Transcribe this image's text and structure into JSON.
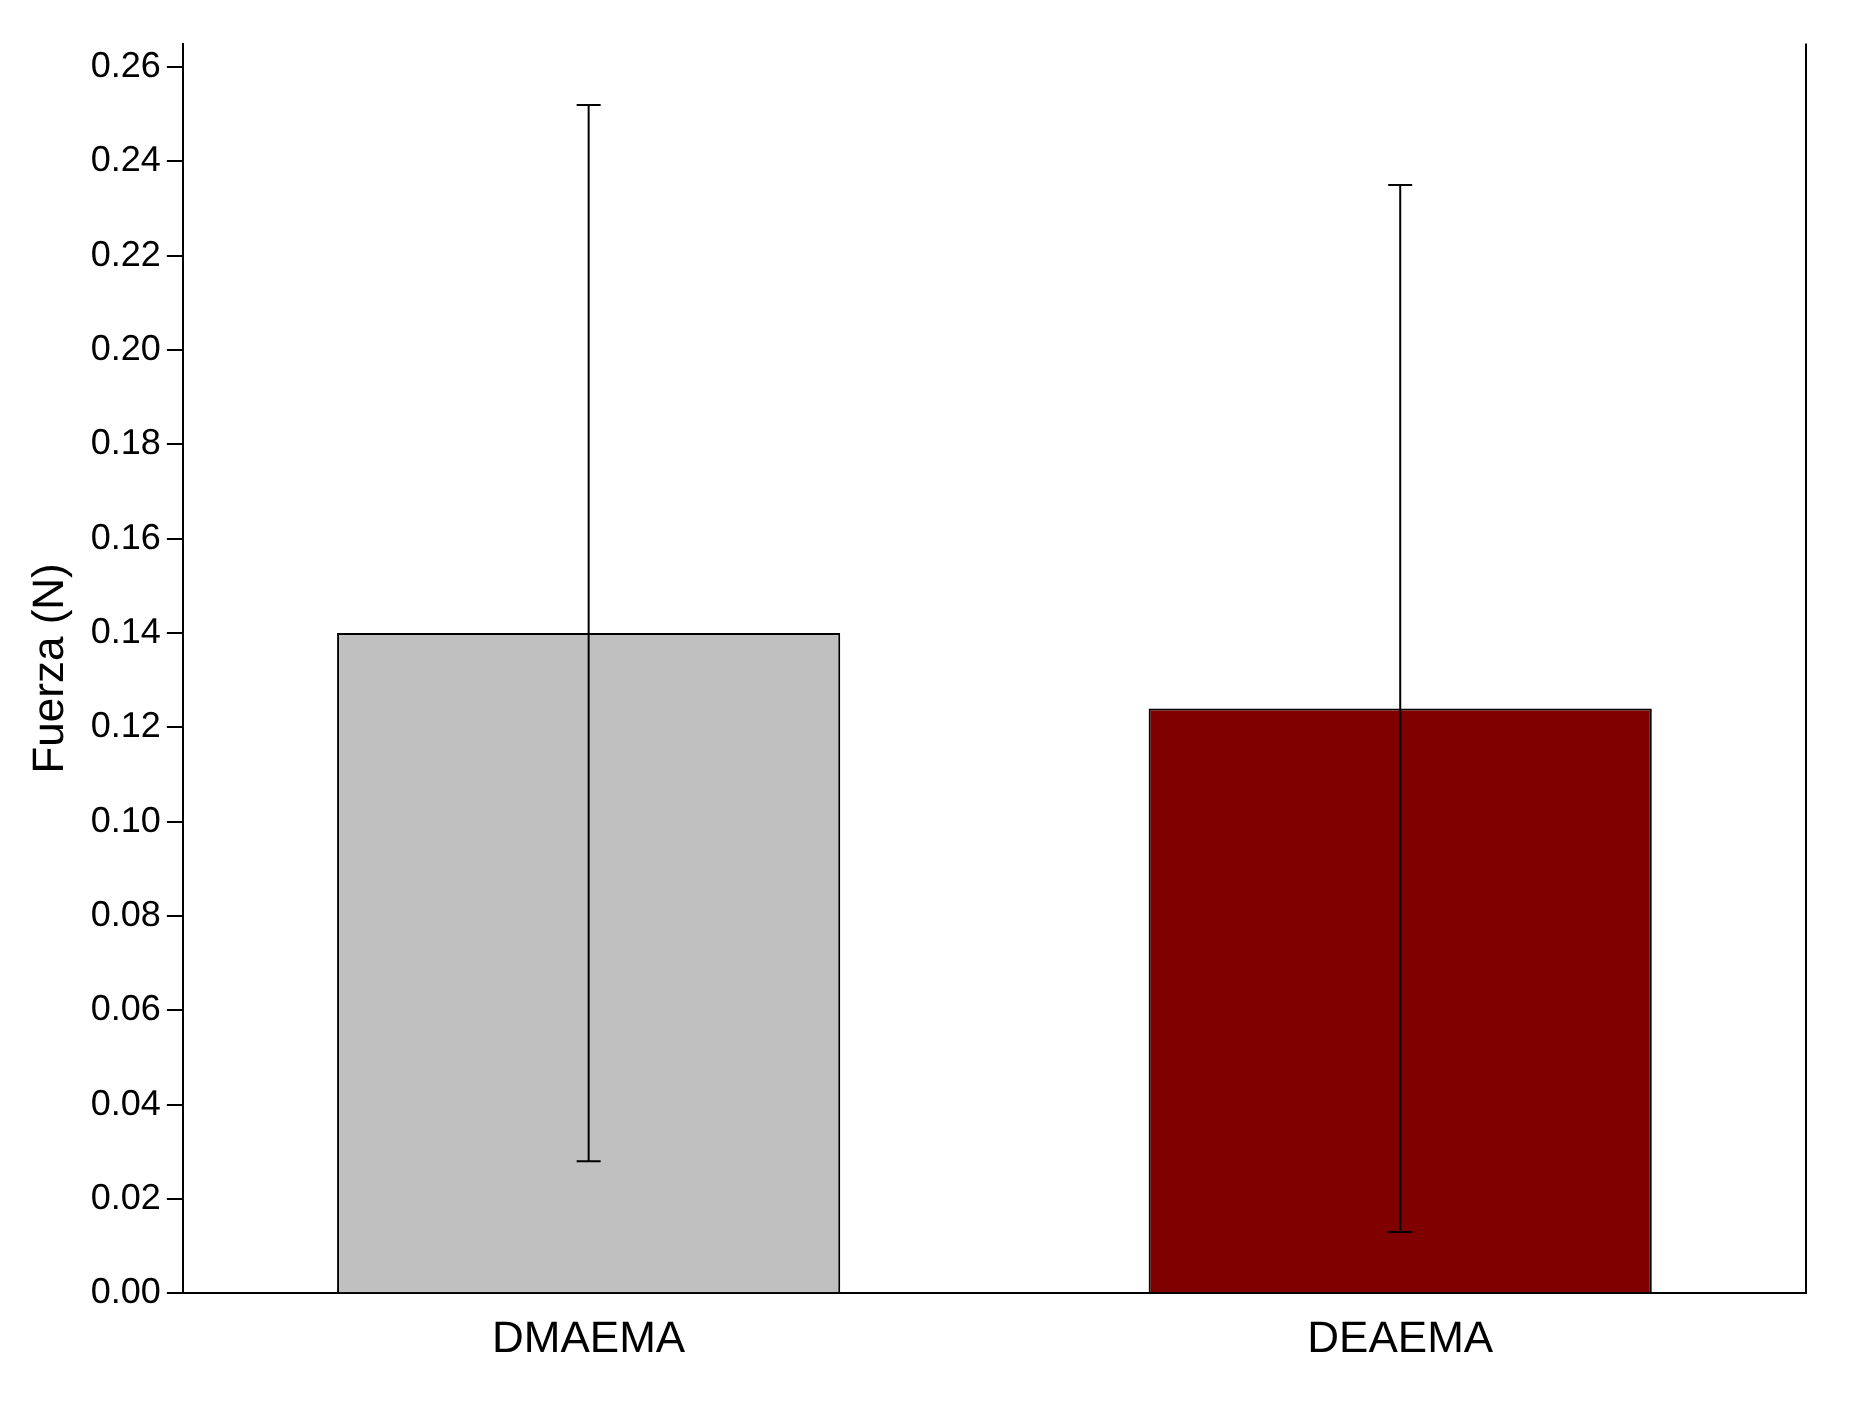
{
  "chart_data": {
    "type": "bar",
    "ylabel": "Fuerza (N)",
    "categories": [
      "DMAEMA",
      "DEAEMA"
    ],
    "values": [
      0.14,
      0.124
    ],
    "colors": [
      "#c0c0c0",
      "#800000"
    ],
    "errors": [
      0.112,
      0.111
    ],
    "ylim": [
      0,
      0.265
    ],
    "yticks": [
      {
        "value": 0,
        "label": "0.00"
      },
      {
        "value": 0.02,
        "label": "0.02"
      },
      {
        "value": 0.04,
        "label": "0.04"
      },
      {
        "value": 0.06,
        "label": "0.06"
      },
      {
        "value": 0.08,
        "label": "0.08"
      },
      {
        "value": 0.1,
        "label": "0.10"
      },
      {
        "value": 0.12,
        "label": "0.12"
      },
      {
        "value": 0.14,
        "label": "0.14"
      },
      {
        "value": 0.16,
        "label": "0.16"
      },
      {
        "value": 0.18,
        "label": "0.18"
      },
      {
        "value": 0.2,
        "label": "0.20"
      },
      {
        "value": 0.22,
        "label": "0.22"
      },
      {
        "value": 0.24,
        "label": "0.24"
      },
      {
        "value": 0.26,
        "label": "0.26"
      }
    ],
    "grid": false,
    "legend": false
  }
}
